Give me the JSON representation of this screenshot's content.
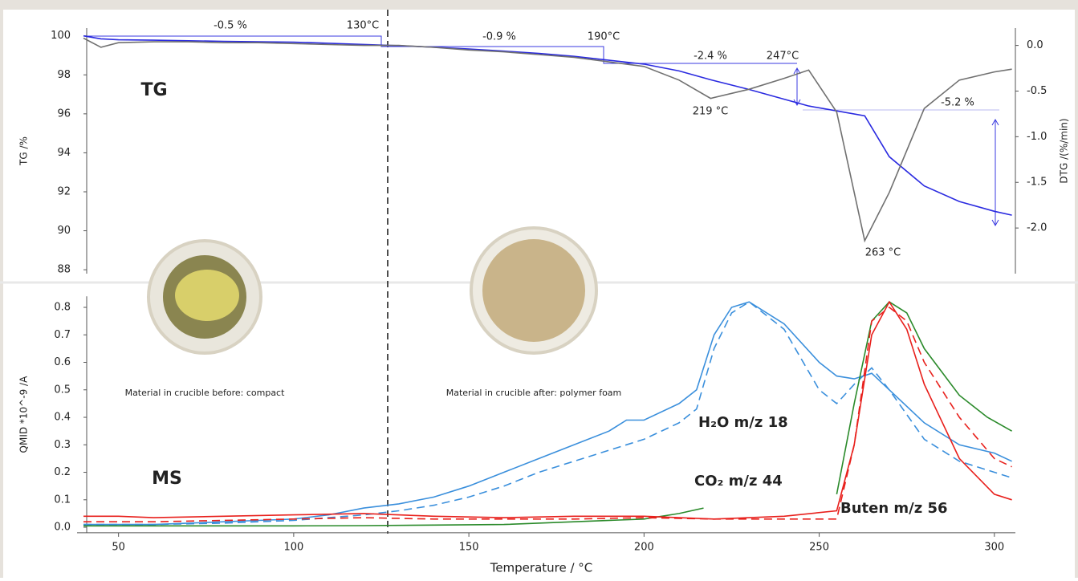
{
  "chart_data": [
    {
      "type": "line",
      "y_label": "TG /%",
      "y2_label": "DTG /(%/min)",
      "xlim": [
        40,
        306
      ],
      "ylim": [
        87.8,
        100.4
      ],
      "yticks": [
        88,
        90,
        92,
        94,
        96,
        98,
        100
      ],
      "y2lim": [
        -2.5,
        0.19
      ],
      "y2ticks": [
        {
          "value": 0,
          "label": "0.0"
        },
        -0.5,
        {
          "value": -1,
          "label": "-1.0"
        },
        -1.5,
        {
          "value": -2,
          "label": "-2.0"
        }
      ],
      "series": [
        {
          "color": "#2a2ae0",
          "x": [
            40,
            45,
            50,
            60,
            70,
            80,
            90,
            100,
            110,
            120,
            130,
            140,
            150,
            160,
            170,
            180,
            190,
            200,
            210,
            219,
            230,
            240,
            247,
            255,
            263,
            270,
            280,
            290,
            300,
            305
          ],
          "values": [
            100.0,
            99.85,
            99.8,
            99.78,
            99.75,
            99.72,
            99.7,
            99.68,
            99.62,
            99.56,
            99.5,
            99.42,
            99.33,
            99.22,
            99.1,
            98.95,
            98.75,
            98.55,
            98.2,
            97.75,
            97.25,
            96.75,
            96.4,
            96.15,
            95.9,
            93.8,
            92.3,
            91.5,
            91.0,
            90.8
          ]
        },
        {
          "color": "#707070",
          "axis": "y2",
          "x": [
            40,
            45,
            50,
            60,
            70,
            80,
            90,
            100,
            110,
            120,
            130,
            140,
            150,
            160,
            170,
            180,
            190,
            200,
            210,
            219,
            230,
            240,
            247,
            255,
            263,
            270,
            280,
            290,
            300,
            305
          ],
          "values": [
            0.08,
            -0.02,
            0.03,
            0.04,
            0.04,
            0.03,
            0.03,
            0.02,
            0.01,
            0.0,
            0.0,
            -0.02,
            -0.05,
            -0.07,
            -0.1,
            -0.13,
            -0.18,
            -0.23,
            -0.38,
            -0.58,
            -0.48,
            -0.36,
            -0.27,
            -0.73,
            -2.14,
            -1.61,
            -0.69,
            -0.38,
            -0.29,
            -0.26
          ]
        }
      ],
      "annotations": [
        {
          "text": "-0.5 %",
          "color": "#3a3ae0"
        },
        {
          "text": "130°C",
          "color": "#222222"
        },
        {
          "text": "-0.9 %",
          "color": "#3a3ae0"
        },
        {
          "text": "190°C",
          "color": "#222222"
        },
        {
          "text": "-2.4 %",
          "color": "#3a3ae0"
        },
        {
          "text": "247°C",
          "color": "#222222"
        },
        {
          "text": "219 °C",
          "color": "#777777"
        },
        {
          "text": "-5.2 %",
          "color": "#3a3ae0"
        },
        {
          "text": "263 °C",
          "color": "#777777"
        },
        {
          "text": "TG",
          "color": "#111111"
        }
      ]
    },
    {
      "type": "line",
      "x_label": "Temperature / °C",
      "y_label": "QMID *10^-9 /A",
      "xlim": [
        40,
        306
      ],
      "xticks": [
        50,
        100,
        150,
        200,
        250,
        300
      ],
      "ylim": [
        -0.02,
        0.84
      ],
      "yticks": [
        {
          "value": 0,
          "label": "0.0"
        },
        0.1,
        0.2,
        0.3,
        0.4,
        0.5,
        0.6,
        0.7,
        0.8
      ],
      "series": [
        {
          "name": "H₂O  m/z 18",
          "color": "#3a8fdc",
          "x": [
            40,
            50,
            60,
            70,
            80,
            90,
            100,
            110,
            120,
            130,
            140,
            150,
            160,
            170,
            180,
            190,
            195,
            200,
            210,
            215,
            220,
            225,
            230,
            240,
            250,
            255,
            260,
            265,
            270,
            280,
            290,
            300,
            305
          ],
          "values": [
            0.01,
            0.01,
            0.01,
            0.015,
            0.02,
            0.025,
            0.03,
            0.045,
            0.07,
            0.085,
            0.11,
            0.15,
            0.2,
            0.25,
            0.3,
            0.35,
            0.39,
            0.39,
            0.45,
            0.5,
            0.7,
            0.8,
            0.82,
            0.74,
            0.6,
            0.55,
            0.54,
            0.56,
            0.5,
            0.38,
            0.3,
            0.27,
            0.24
          ]
        },
        {
          "color": "#3a8fdc",
          "dash": true,
          "x": [
            40,
            60,
            80,
            100,
            120,
            130,
            140,
            150,
            160,
            170,
            180,
            190,
            200,
            210,
            215,
            220,
            225,
            230,
            240,
            250,
            255,
            260,
            265,
            270,
            280,
            290,
            300,
            305
          ],
          "values": [
            0.01,
            0.01,
            0.015,
            0.025,
            0.045,
            0.06,
            0.08,
            0.11,
            0.15,
            0.2,
            0.24,
            0.28,
            0.32,
            0.38,
            0.43,
            0.65,
            0.78,
            0.82,
            0.72,
            0.5,
            0.45,
            0.52,
            0.58,
            0.5,
            0.32,
            0.24,
            0.2,
            0.18
          ]
        },
        {
          "name": "CO₂  m/z 44",
          "color": "#2a8a2a",
          "x": [
            40,
            60,
            80,
            100,
            120,
            140,
            160,
            180,
            200,
            210,
            217,
            230,
            255,
            260,
            265,
            270,
            275,
            280,
            290,
            298,
            305
          ],
          "values": [
            0.005,
            0.005,
            0.005,
            0.005,
            0.006,
            0.008,
            0.01,
            0.02,
            0.03,
            0.05,
            0.07,
            null,
            0.12,
            0.45,
            0.75,
            0.82,
            0.78,
            0.65,
            0.48,
            0.4,
            0.35
          ]
        },
        {
          "name": "Buten m/z 56",
          "color": "#e8201c",
          "x": [
            40,
            50,
            60,
            80,
            100,
            120,
            140,
            160,
            180,
            200,
            220,
            240,
            255,
            260,
            265,
            270,
            275,
            280,
            290,
            300,
            305
          ],
          "values": [
            0.04,
            0.04,
            0.035,
            0.04,
            0.045,
            0.05,
            0.04,
            0.035,
            0.04,
            0.04,
            0.03,
            0.04,
            0.06,
            0.3,
            0.7,
            0.82,
            0.72,
            0.52,
            0.25,
            0.12,
            0.1
          ]
        },
        {
          "color": "#e8201c",
          "dash": true,
          "x": [
            40,
            60,
            80,
            100,
            120,
            140,
            160,
            180,
            200,
            220,
            240,
            255,
            260,
            265,
            270,
            275,
            280,
            290,
            300,
            305
          ],
          "values": [
            0.02,
            0.02,
            0.025,
            0.03,
            0.035,
            0.03,
            0.03,
            0.03,
            0.035,
            0.03,
            0.03,
            0.03,
            0.3,
            0.75,
            0.8,
            0.75,
            0.6,
            0.4,
            0.25,
            0.22
          ]
        }
      ],
      "annotations": [
        {
          "text": "Material in crucible before: compact",
          "color": "#222222"
        },
        {
          "text": "Material in crucible after: polymer foam",
          "color": "#222222"
        },
        {
          "text": "MS",
          "color": "#111111"
        }
      ]
    }
  ]
}
